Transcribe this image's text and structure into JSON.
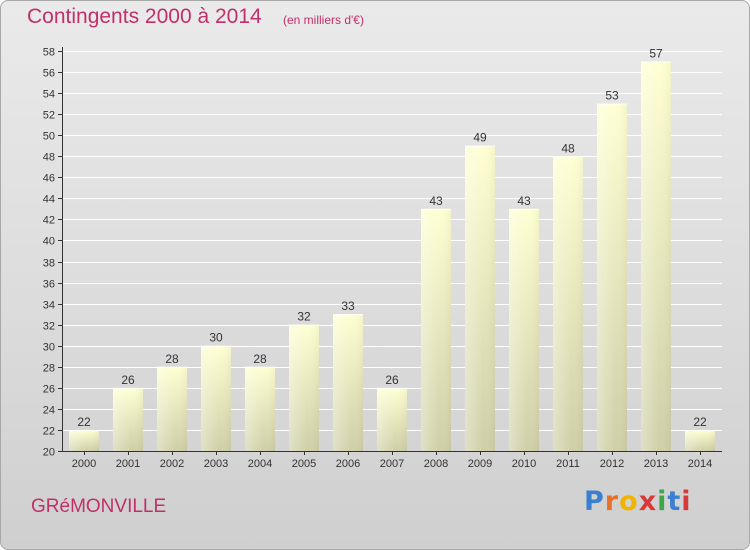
{
  "header": {
    "title": "Contingents 2000 à 2014",
    "subtitle": "(en milliers d'€)"
  },
  "footer": {
    "commune": "GRéMONVILLE",
    "logo_text": "Proxiti"
  },
  "colors": {
    "title": "#c0306a",
    "bar_top": "#feffd2",
    "bar_bottom": "#cfcfa8",
    "axis": "#333333",
    "grid": "#ffffff"
  },
  "chart_data": {
    "type": "bar",
    "title": "Contingents 2000 à 2014",
    "subtitle": "(en milliers d'€)",
    "xlabel": "",
    "ylabel": "",
    "categories": [
      "2000",
      "2001",
      "2002",
      "2003",
      "2004",
      "2005",
      "2006",
      "2007",
      "2008",
      "2009",
      "2010",
      "2011",
      "2012",
      "2013",
      "2014"
    ],
    "values": [
      22,
      26,
      28,
      30,
      28,
      32,
      33,
      26,
      43,
      49,
      43,
      48,
      53,
      57,
      22
    ],
    "ylim": [
      20,
      58
    ],
    "ytick_step": 2,
    "grid": true,
    "legend": "none"
  }
}
